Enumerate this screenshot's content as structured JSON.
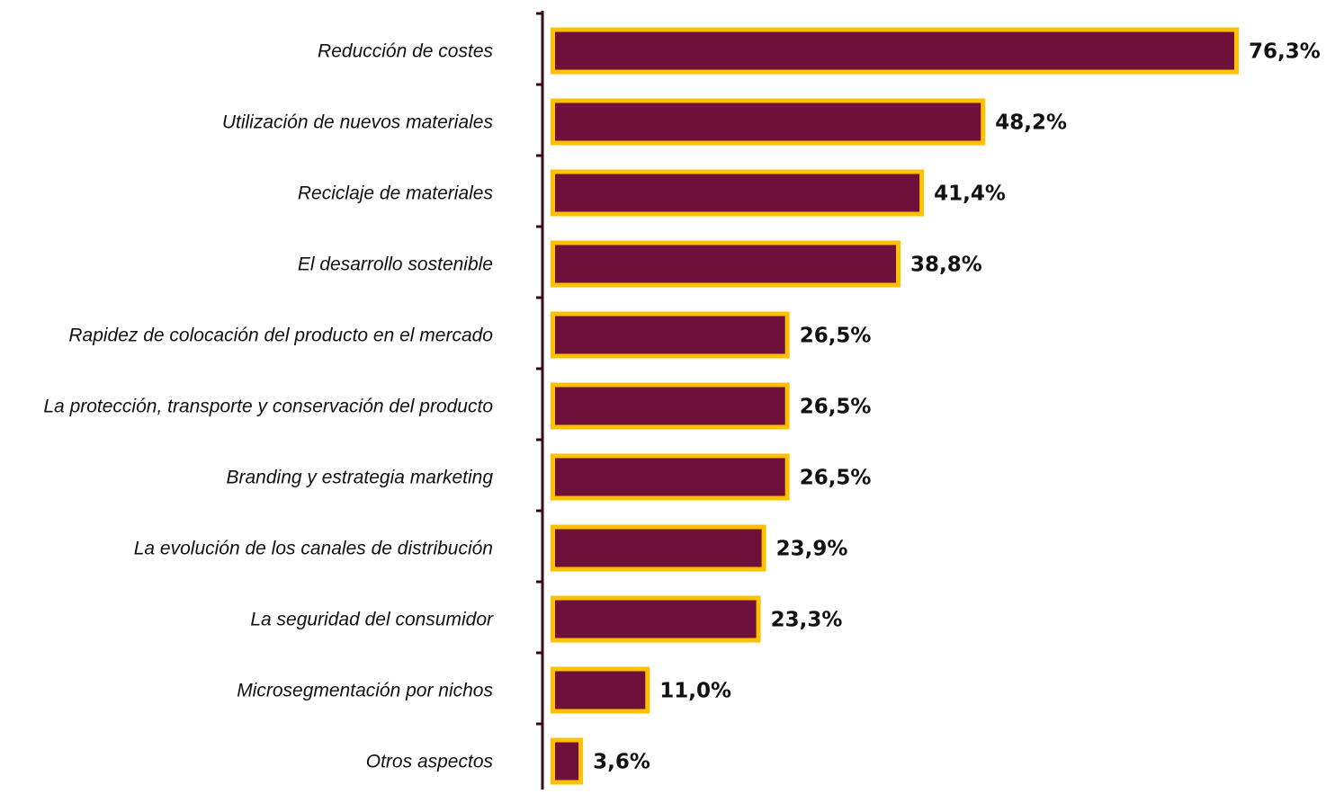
{
  "chart_data": {
    "type": "bar",
    "orientation": "horizontal",
    "categories": [
      "Reducción de costes",
      "Utilización de nuevos materiales",
      "Reciclaje de materiales",
      "El desarrollo sostenible",
      "Rapidez de colocación del producto en el mercado",
      "La protección, transporte y conservación del producto",
      "Branding y estrategia marketing",
      "La evolución de los canales de distribución",
      "La seguridad del consumidor",
      "Microsegmentación por nichos",
      "Otros aspectos"
    ],
    "values": [
      76.3,
      48.2,
      41.4,
      38.8,
      26.5,
      26.5,
      26.5,
      23.9,
      23.3,
      11.0,
      3.6
    ],
    "value_labels": [
      "76,3%",
      "48,2%",
      "41,4%",
      "38,8%",
      "26,5%",
      "26,5%",
      "26,5%",
      "23,9%",
      "23,3%",
      "11,0%",
      "3,6%"
    ],
    "unit": "%",
    "title": "",
    "xlabel": "",
    "ylabel": "",
    "xlim": [
      0,
      76.3
    ],
    "grid": false,
    "legend": "none",
    "colors": {
      "bar_fill": "#6e1039",
      "bar_border": "#ffc000",
      "axis": "#3b0a1f"
    }
  }
}
